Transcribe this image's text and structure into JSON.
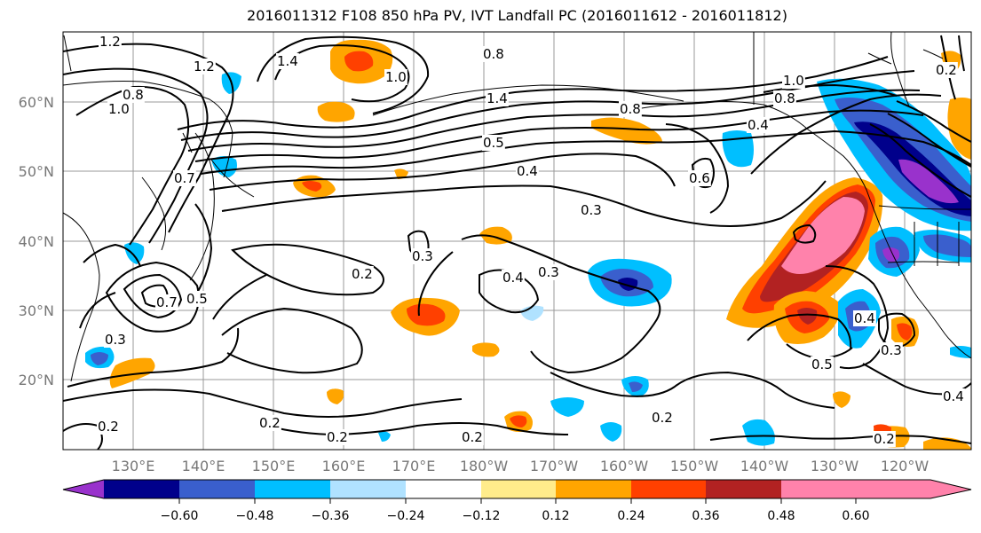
{
  "title": "2016011312 F108 850 hPa PV, IVT Landfall PC (2016011612 - 2016011812)",
  "lat_labels": [
    "60°N",
    "50°N",
    "40°N",
    "30°N",
    "20°N"
  ],
  "lon_labels": [
    "130°E",
    "140°E",
    "150°E",
    "160°E",
    "170°E",
    "180°W",
    "170°W",
    "160°W",
    "150°W",
    "140°W",
    "130°W",
    "120°W"
  ],
  "colorbar": {
    "colors": [
      "#9932cc",
      "#00008b",
      "#3a5fcd",
      "#00bfff",
      "#b0e2ff",
      "#ffffff",
      "#ffec8b",
      "#ffa500",
      "#ff4000",
      "#b22222",
      "#ff82ab"
    ],
    "tick_labels": [
      "−0.60",
      "−0.48",
      "−0.36",
      "−0.24",
      "−0.12",
      "0.12",
      "0.24",
      "0.36",
      "0.48",
      "0.60"
    ]
  },
  "contour_labels": [
    "1.2",
    "1.2",
    "1.4",
    "1.0",
    "0.8",
    "1.0",
    "0.8",
    "0.8",
    "1.4",
    "1.0",
    "0.8",
    "0.4",
    "0.5",
    "0.4",
    "0.6",
    "0.3",
    "0.7",
    "0.3",
    "0.2",
    "0.4",
    "0.3",
    "0.7",
    "0.5",
    "0.3",
    "0.2",
    "0.4",
    "0.3",
    "0.5",
    "0.2",
    "0.2",
    "0.2",
    "0.2",
    "0.2",
    "0.2",
    "0.4"
  ]
}
